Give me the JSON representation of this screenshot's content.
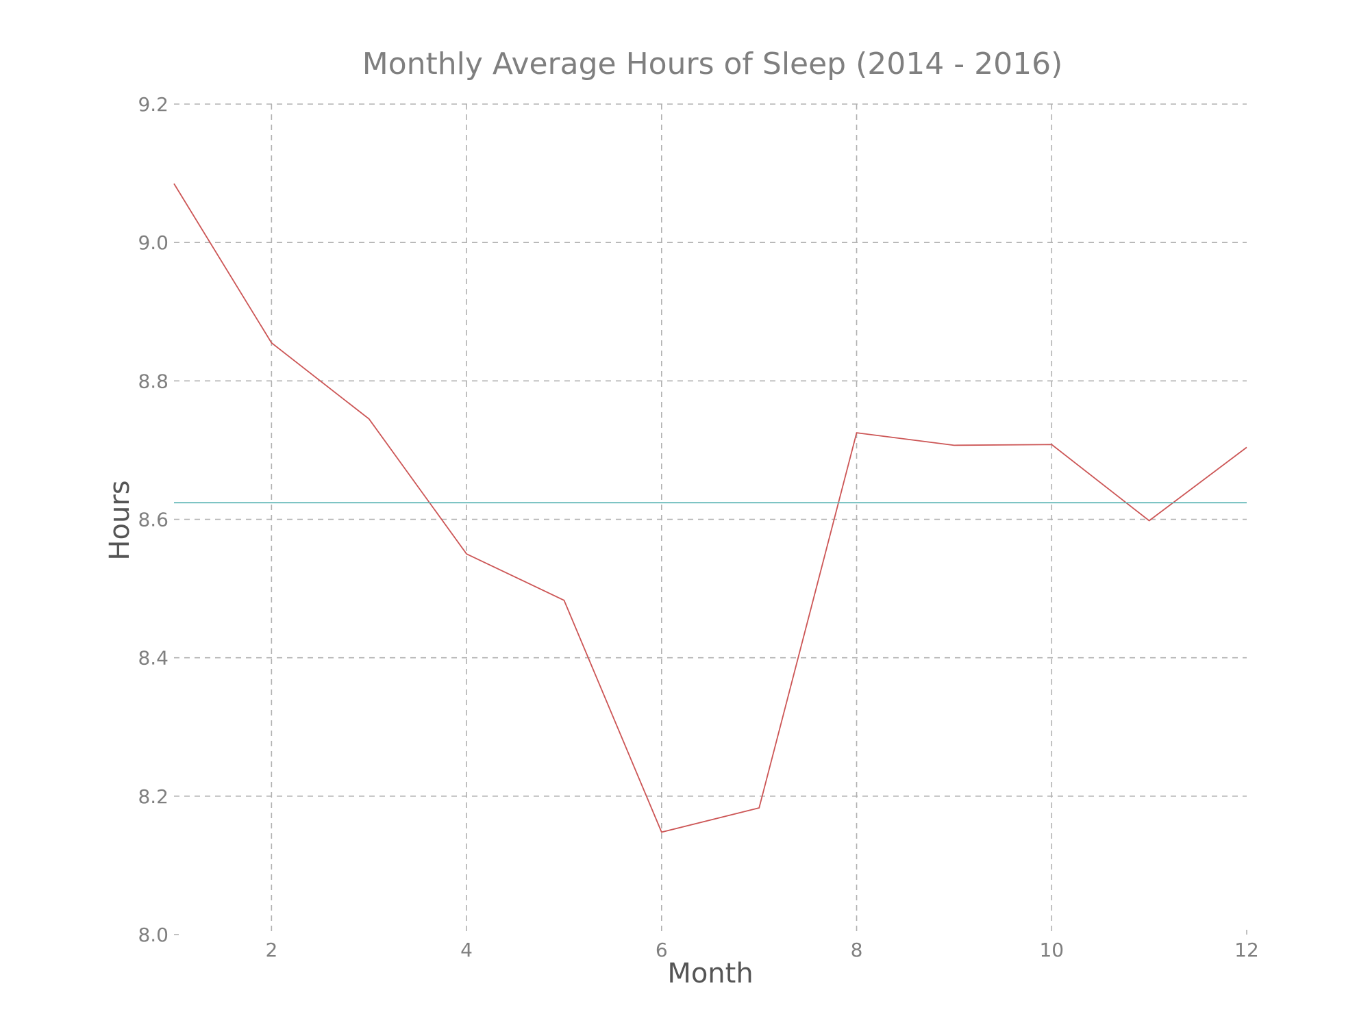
{
  "chart_data": {
    "type": "line",
    "title": "Monthly Average Hours of Sleep (2014 - 2016)",
    "xlabel": "Month",
    "ylabel": "Hours",
    "xlim": [
      1,
      12
    ],
    "ylim": [
      8.0,
      9.2
    ],
    "xticks": [
      2,
      4,
      6,
      8,
      10,
      12
    ],
    "xtick_labels": [
      "2",
      "4",
      "6",
      "8",
      "10",
      "12"
    ],
    "yticks": [
      8.0,
      8.2,
      8.4,
      8.6,
      8.8,
      9.0,
      9.2
    ],
    "ytick_labels": [
      "8.0",
      "8.2",
      "8.4",
      "8.6",
      "8.8",
      "9.0",
      "9.2"
    ],
    "grid": true,
    "series": [
      {
        "x": [
          1,
          2,
          3,
          4,
          5,
          6,
          7,
          8,
          9,
          10,
          11,
          12
        ],
        "values": [
          9.085,
          8.855,
          8.745,
          8.55,
          8.483,
          8.148,
          8.183,
          8.725,
          8.707,
          8.708,
          8.598,
          8.704
        ],
        "color": "#cc5555"
      },
      {
        "x": [
          1,
          12
        ],
        "values": [
          8.624,
          8.624
        ],
        "color": "#5bb5b5"
      }
    ]
  }
}
